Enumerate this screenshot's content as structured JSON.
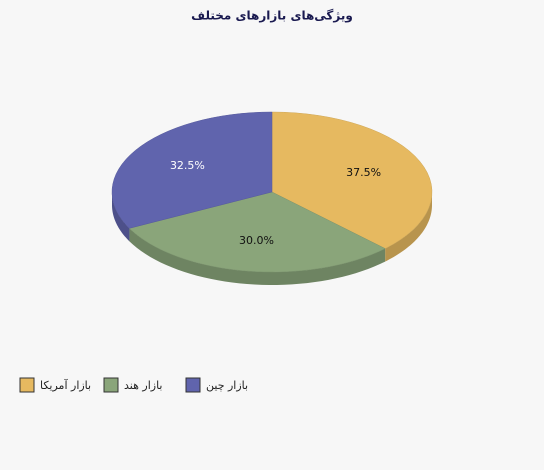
{
  "chart_data": {
    "type": "pie",
    "title": "ویژگی‌های بازارهای مختلف",
    "categories": [
      "بازار آمریکا",
      "بازار هند",
      "بازار چین"
    ],
    "values": [
      37.5,
      30,
      32.5
    ],
    "value_labels": [
      "37.5%",
      "30.0%",
      "32.5%"
    ],
    "colors": [
      "#e6b960",
      "#8aa57a",
      "#6064ad"
    ]
  }
}
